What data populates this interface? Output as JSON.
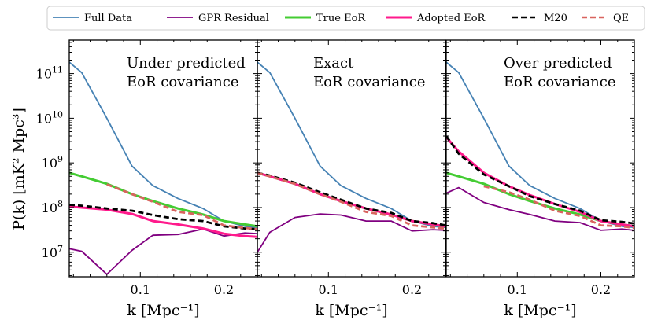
{
  "chart_data": {
    "type": "line",
    "ylabel": "P(k) [mK² Mpc³]",
    "xlabel": "k [Mpc⁻¹]",
    "x_scale": "linear",
    "y_scale": "log",
    "xlim": [
      0.015,
      0.24
    ],
    "ylim_log10": [
      6.45,
      11.75
    ],
    "x_ticks": [
      0.1,
      0.2
    ],
    "x_tick_labels": [
      "0.1",
      "0.2"
    ],
    "y_ticks_log10": [
      7,
      8,
      9,
      10,
      11
    ],
    "y_tick_labels": [
      "10",
      "10",
      "10",
      "10",
      "10"
    ],
    "y_tick_exponents": [
      "7",
      "8",
      "9",
      "10",
      "11"
    ],
    "legend": {
      "placement": "top",
      "entries": [
        {
          "label": "Full Data",
          "color": "#4682b4",
          "dash": "solid"
        },
        {
          "label": "GPR Residual",
          "color": "#800080",
          "dash": "solid"
        },
        {
          "label": "True EoR",
          "color": "#44cc33",
          "dash": "solid"
        },
        {
          "label": "Adopted EoR",
          "color": "#ff1a8c",
          "dash": "solid"
        },
        {
          "label": "M20",
          "color": "#000000",
          "dash": "dashed"
        },
        {
          "label": "QE",
          "color": "#d9645f",
          "dash": "dashed"
        }
      ]
    },
    "panels": [
      {
        "annotation": [
          "Under predicted",
          "EoR covariance"
        ],
        "series": [
          {
            "name": "Full Data",
            "x": [
              0.015,
              0.03,
              0.06,
              0.09,
              0.115,
              0.145,
              0.175,
              0.2,
              0.225,
              0.24
            ],
            "y": [
              180000000000.0,
              105000000000.0,
              10000000000.0,
              850000000.0,
              310000000.0,
              160000000.0,
              95000000.0,
              50000000.0,
              38000000.0,
              36000000.0
            ]
          },
          {
            "name": "GPR Residual",
            "x": [
              0.015,
              0.03,
              0.06,
              0.09,
              0.115,
              0.145,
              0.175,
              0.2,
              0.225,
              0.24
            ],
            "y": [
              12000000.0,
              10500000.0,
              3200000.0,
              11000000.0,
              24000000.0,
              25000000.0,
              33000000.0,
              23000000.0,
              27000000.0,
              26000000.0
            ]
          },
          {
            "name": "True EoR",
            "x": [
              0.015,
              0.03,
              0.06,
              0.09,
              0.115,
              0.145,
              0.175,
              0.2,
              0.225,
              0.24
            ],
            "y": [
              600000000.0,
              500000000.0,
              340000000.0,
              200000000.0,
              140000000.0,
              95000000.0,
              70000000.0,
              50000000.0,
              42000000.0,
              38000000.0
            ]
          },
          {
            "name": "Adopted EoR",
            "x": [
              0.015,
              0.03,
              0.06,
              0.09,
              0.115,
              0.145,
              0.175,
              0.2,
              0.225,
              0.24
            ],
            "y": [
              105000000.0,
              100000000.0,
              90000000.0,
              72000000.0,
              50000000.0,
              42000000.0,
              34000000.0,
              26000000.0,
              23000000.0,
              22000000.0
            ]
          },
          {
            "name": "M20",
            "x": [
              0.015,
              0.03,
              0.06,
              0.09,
              0.115,
              0.145,
              0.175,
              0.2,
              0.225,
              0.24
            ],
            "y": [
              115000000.0,
              110000000.0,
              95000000.0,
              85000000.0,
              68000000.0,
              55000000.0,
              50000000.0,
              38000000.0,
              34000000.0,
              33000000.0
            ]
          },
          {
            "name": "QE",
            "x": [
              0.06,
              0.09,
              0.115,
              0.145,
              0.175,
              0.2,
              0.225,
              0.24
            ],
            "y": [
              330000000.0,
              200000000.0,
              135000000.0,
              80000000.0,
              68000000.0,
              40000000.0,
              35000000.0,
              33000000.0
            ]
          }
        ]
      },
      {
        "annotation": [
          "Exact",
          "EoR covariance"
        ],
        "series": [
          {
            "name": "Full Data",
            "x": [
              0.015,
              0.03,
              0.06,
              0.09,
              0.115,
              0.145,
              0.175,
              0.2,
              0.225,
              0.24
            ],
            "y": [
              180000000000.0,
              105000000000.0,
              10000000000.0,
              850000000.0,
              310000000.0,
              160000000.0,
              95000000.0,
              50000000.0,
              38000000.0,
              36000000.0
            ]
          },
          {
            "name": "GPR Residual",
            "x": [
              0.015,
              0.03,
              0.06,
              0.09,
              0.115,
              0.145,
              0.175,
              0.2,
              0.225,
              0.24
            ],
            "y": [
              10000000.0,
              28000000.0,
              60000000.0,
              72000000.0,
              68000000.0,
              50000000.0,
              50000000.0,
              30000000.0,
              32000000.0,
              31000000.0
            ]
          },
          {
            "name": "True EoR",
            "x": [
              0.015,
              0.03,
              0.06,
              0.09,
              0.115,
              0.145,
              0.175,
              0.2,
              0.225,
              0.24
            ],
            "y": [
              600000000.0,
              500000000.0,
              340000000.0,
              200000000.0,
              140000000.0,
              95000000.0,
              70000000.0,
              50000000.0,
              42000000.0,
              38000000.0
            ]
          },
          {
            "name": "Adopted EoR",
            "x": [
              0.015,
              0.03,
              0.06,
              0.09,
              0.115,
              0.145,
              0.175,
              0.2,
              0.225,
              0.24
            ],
            "y": [
              600000000.0,
              500000000.0,
              340000000.0,
              200000000.0,
              140000000.0,
              95000000.0,
              70000000.0,
              50000000.0,
              42000000.0,
              38000000.0
            ]
          },
          {
            "name": "M20",
            "x": [
              0.015,
              0.03,
              0.06,
              0.09,
              0.115,
              0.145,
              0.175,
              0.2,
              0.225,
              0.24
            ],
            "y": [
              600000000.0,
              520000000.0,
              360000000.0,
              220000000.0,
              150000000.0,
              95000000.0,
              76000000.0,
              50000000.0,
              45000000.0,
              40000000.0
            ]
          },
          {
            "name": "QE",
            "x": [
              0.015,
              0.03,
              0.06,
              0.09,
              0.115,
              0.145,
              0.175,
              0.2,
              0.225,
              0.24
            ],
            "y": [
              600000000.0,
              500000000.0,
              340000000.0,
              200000000.0,
              135000000.0,
              80000000.0,
              65000000.0,
              40000000.0,
              36000000.0,
              34000000.0
            ]
          }
        ]
      },
      {
        "annotation": [
          "Over predicted",
          "EoR covariance"
        ],
        "series": [
          {
            "name": "Full Data",
            "x": [
              0.015,
              0.03,
              0.06,
              0.09,
              0.115,
              0.145,
              0.175,
              0.2,
              0.225,
              0.24
            ],
            "y": [
              180000000000.0,
              105000000000.0,
              10000000000.0,
              850000000.0,
              310000000.0,
              160000000.0,
              95000000.0,
              50000000.0,
              38000000.0,
              36000000.0
            ]
          },
          {
            "name": "GPR Residual",
            "x": [
              0.015,
              0.03,
              0.06,
              0.09,
              0.115,
              0.145,
              0.175,
              0.2,
              0.225,
              0.24
            ],
            "y": [
              210000000.0,
              280000000.0,
              130000000.0,
              90000000.0,
              70000000.0,
              50000000.0,
              46000000.0,
              31000000.0,
              33000000.0,
              31000000.0
            ]
          },
          {
            "name": "True EoR",
            "x": [
              0.015,
              0.03,
              0.06,
              0.09,
              0.115,
              0.145,
              0.175,
              0.2,
              0.225,
              0.24
            ],
            "y": [
              600000000.0,
              500000000.0,
              340000000.0,
              200000000.0,
              140000000.0,
              95000000.0,
              70000000.0,
              50000000.0,
              42000000.0,
              38000000.0
            ]
          },
          {
            "name": "Adopted EoR",
            "x": [
              0.015,
              0.03,
              0.06,
              0.09,
              0.115,
              0.145,
              0.175,
              0.2,
              0.225,
              0.24
            ],
            "y": [
              3800000000.0,
              1800000000.0,
              600000000.0,
              300000000.0,
              190000000.0,
              120000000.0,
              80000000.0,
              50000000.0,
              42000000.0,
              38000000.0
            ]
          },
          {
            "name": "M20",
            "x": [
              0.015,
              0.03,
              0.06,
              0.09,
              0.115,
              0.145,
              0.175,
              0.2,
              0.225,
              0.24
            ],
            "y": [
              4000000000.0,
              1600000000.0,
              550000000.0,
              300000000.0,
              180000000.0,
              120000000.0,
              85000000.0,
              52000000.0,
              48000000.0,
              44000000.0
            ]
          },
          {
            "name": "QE",
            "x": [
              0.06,
              0.09,
              0.115,
              0.145,
              0.175,
              0.2,
              0.225,
              0.24
            ],
            "y": [
              300000000.0,
              220000000.0,
              150000000.0,
              85000000.0,
              65000000.0,
              40000000.0,
              38000000.0,
              35000000.0
            ]
          }
        ]
      }
    ]
  }
}
